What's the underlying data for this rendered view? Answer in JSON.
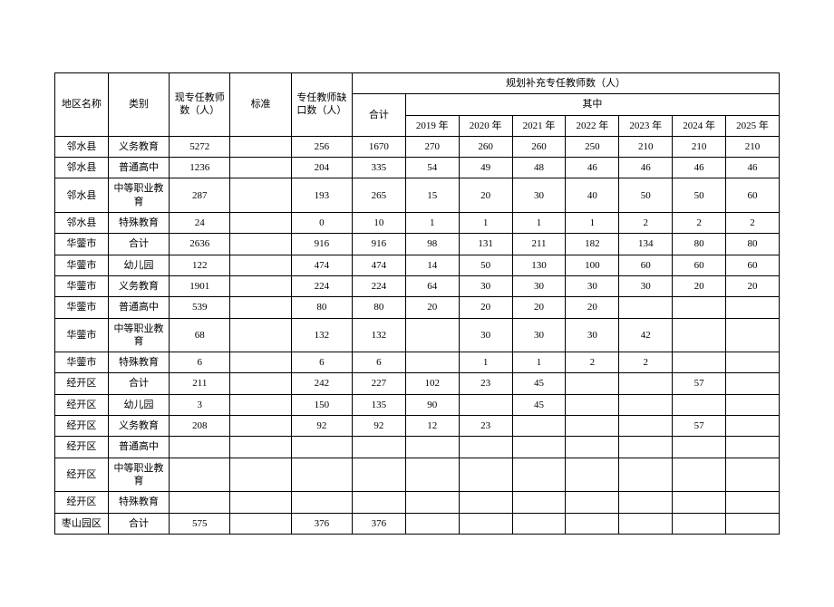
{
  "headers": {
    "region": "地区名称",
    "category": "类别",
    "current_teachers": "现专任教师数（人）",
    "standard": "标准",
    "gap": "专任教师缺口数（人）",
    "plan_supplement": "规划补充专任教师数（人）",
    "total": "合计",
    "among": "其中",
    "y2019": "2019 年",
    "y2020": "2020 年",
    "y2021": "2021 年",
    "y2022": "2022 年",
    "y2023": "2023 年",
    "y2024": "2024 年",
    "y2025": "2025 年"
  },
  "rows": [
    {
      "region": "邻水县",
      "category": "义务教育",
      "current": "5272",
      "standard": "",
      "gap": "256",
      "total": "1670",
      "y2019": "270",
      "y2020": "260",
      "y2021": "260",
      "y2022": "250",
      "y2023": "210",
      "y2024": "210",
      "y2025": "210"
    },
    {
      "region": "邻水县",
      "category": "普通高中",
      "current": "1236",
      "standard": "",
      "gap": "204",
      "total": "335",
      "y2019": "54",
      "y2020": "49",
      "y2021": "48",
      "y2022": "46",
      "y2023": "46",
      "y2024": "46",
      "y2025": "46"
    },
    {
      "region": "邻水县",
      "category": "中等职业教育",
      "current": "287",
      "standard": "",
      "gap": "193",
      "total": "265",
      "y2019": "15",
      "y2020": "20",
      "y2021": "30",
      "y2022": "40",
      "y2023": "50",
      "y2024": "50",
      "y2025": "60",
      "tall": true
    },
    {
      "region": "邻水县",
      "category": "特殊教育",
      "current": "24",
      "standard": "",
      "gap": "0",
      "total": "10",
      "y2019": "1",
      "y2020": "1",
      "y2021": "1",
      "y2022": "1",
      "y2023": "2",
      "y2024": "2",
      "y2025": "2"
    },
    {
      "region": "华蓥市",
      "category": "合计",
      "current": "2636",
      "standard": "",
      "gap": "916",
      "total": "916",
      "y2019": "98",
      "y2020": "131",
      "y2021": "211",
      "y2022": "182",
      "y2023": "134",
      "y2024": "80",
      "y2025": "80"
    },
    {
      "region": "华蓥市",
      "category": "幼儿园",
      "current": "122",
      "standard": "",
      "gap": "474",
      "total": "474",
      "y2019": "14",
      "y2020": "50",
      "y2021": "130",
      "y2022": "100",
      "y2023": "60",
      "y2024": "60",
      "y2025": "60"
    },
    {
      "region": "华蓥市",
      "category": "义务教育",
      "current": "1901",
      "standard": "",
      "gap": "224",
      "total": "224",
      "y2019": "64",
      "y2020": "30",
      "y2021": "30",
      "y2022": "30",
      "y2023": "30",
      "y2024": "20",
      "y2025": "20"
    },
    {
      "region": "华蓥市",
      "category": "普通高中",
      "current": "539",
      "standard": "",
      "gap": "80",
      "total": "80",
      "y2019": "20",
      "y2020": "20",
      "y2021": "20",
      "y2022": "20",
      "y2023": "",
      "y2024": "",
      "y2025": ""
    },
    {
      "region": "华蓥市",
      "category": "中等职业教育",
      "current": "68",
      "standard": "",
      "gap": "132",
      "total": "132",
      "y2019": "",
      "y2020": "30",
      "y2021": "30",
      "y2022": "30",
      "y2023": "42",
      "y2024": "",
      "y2025": "",
      "tall": true
    },
    {
      "region": "华蓥市",
      "category": "特殊教育",
      "current": "6",
      "standard": "",
      "gap": "6",
      "total": "6",
      "y2019": "",
      "y2020": "1",
      "y2021": "1",
      "y2022": "2",
      "y2023": "2",
      "y2024": "",
      "y2025": ""
    },
    {
      "region": "经开区",
      "category": "合计",
      "current": "211",
      "standard": "",
      "gap": "242",
      "total": "227",
      "y2019": "102",
      "y2020": "23",
      "y2021": "45",
      "y2022": "",
      "y2023": "",
      "y2024": "57",
      "y2025": ""
    },
    {
      "region": "经开区",
      "category": "幼儿园",
      "current": "3",
      "standard": "",
      "gap": "150",
      "total": "135",
      "y2019": "90",
      "y2020": "",
      "y2021": "45",
      "y2022": "",
      "y2023": "",
      "y2024": "",
      "y2025": ""
    },
    {
      "region": "经开区",
      "category": "义务教育",
      "current": "208",
      "standard": "",
      "gap": "92",
      "total": "92",
      "y2019": "12",
      "y2020": "23",
      "y2021": "",
      "y2022": "",
      "y2023": "",
      "y2024": "57",
      "y2025": ""
    },
    {
      "region": "经开区",
      "category": "普通高中",
      "current": "",
      "standard": "",
      "gap": "",
      "total": "",
      "y2019": "",
      "y2020": "",
      "y2021": "",
      "y2022": "",
      "y2023": "",
      "y2024": "",
      "y2025": ""
    },
    {
      "region": "经开区",
      "category": "中等职业教育",
      "current": "",
      "standard": "",
      "gap": "",
      "total": "",
      "y2019": "",
      "y2020": "",
      "y2021": "",
      "y2022": "",
      "y2023": "",
      "y2024": "",
      "y2025": "",
      "tall": true
    },
    {
      "region": "经开区",
      "category": "特殊教育",
      "current": "",
      "standard": "",
      "gap": "",
      "total": "",
      "y2019": "",
      "y2020": "",
      "y2021": "",
      "y2022": "",
      "y2023": "",
      "y2024": "",
      "y2025": ""
    },
    {
      "region": "枣山园区",
      "category": "合计",
      "current": "575",
      "standard": "",
      "gap": "376",
      "total": "376",
      "y2019": "",
      "y2020": "",
      "y2021": "",
      "y2022": "",
      "y2023": "",
      "y2024": "",
      "y2025": ""
    }
  ],
  "styling": {
    "background_color": "#ffffff",
    "border_color": "#000000",
    "font_size": 11,
    "font_family": "SimSun"
  }
}
